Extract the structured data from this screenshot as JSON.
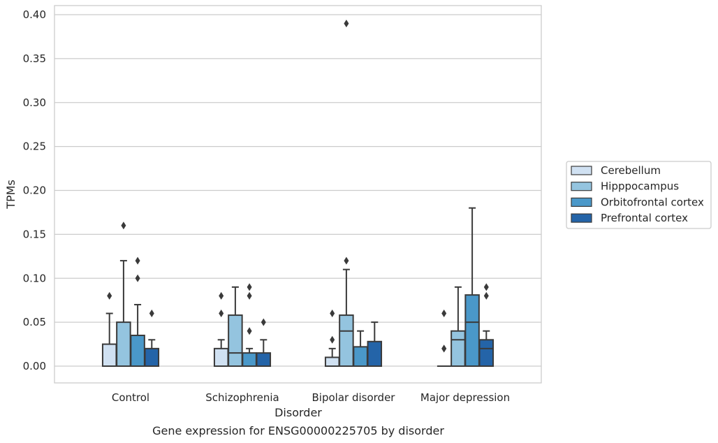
{
  "chart_data": {
    "type": "box",
    "title": "",
    "caption": "Gene expression for ENSG00000225705 by disorder",
    "xlabel": "Disorder",
    "ylabel": "TPMs",
    "ylim": [
      -0.018,
      0.41
    ],
    "yticks": [
      "0.00",
      "0.05",
      "0.10",
      "0.15",
      "0.20",
      "0.25",
      "0.30",
      "0.35",
      "0.40"
    ],
    "ytick_values": [
      0,
      0.05,
      0.1,
      0.15,
      0.2,
      0.25,
      0.3,
      0.35,
      0.4
    ],
    "grid": true,
    "legend_position": "right",
    "categories": [
      "Control",
      "Schizophrenia",
      "Bipolar disorder",
      "Major depression"
    ],
    "series": [
      {
        "name": "Cerebellum",
        "color": "#d0e1f2",
        "boxes": [
          {
            "q1": 0,
            "median": 0,
            "q3": 0.025,
            "whislo": 0,
            "whishi": 0.06,
            "fliers": [
              0.08
            ]
          },
          {
            "q1": 0,
            "median": 0,
            "q3": 0.02,
            "whislo": 0,
            "whishi": 0.03,
            "fliers": [
              0.06,
              0.08
            ]
          },
          {
            "q1": 0,
            "median": 0,
            "q3": 0.01,
            "whislo": 0,
            "whishi": 0.02,
            "fliers": [
              0.03,
              0.06
            ]
          },
          {
            "q1": 0,
            "median": 0,
            "q3": 0,
            "whislo": 0,
            "whishi": 0,
            "fliers": [
              0.02,
              0.02,
              0.06
            ]
          }
        ]
      },
      {
        "name": "Hipppocampus",
        "color": "#94c4df",
        "boxes": [
          {
            "q1": 0,
            "median": 0,
            "q3": 0.05,
            "whislo": 0,
            "whishi": 0.12,
            "fliers": [
              0.16
            ]
          },
          {
            "q1": 0,
            "median": 0.015,
            "q3": 0.058,
            "whislo": 0,
            "whishi": 0.09,
            "fliers": []
          },
          {
            "q1": 0,
            "median": 0.04,
            "q3": 0.058,
            "whislo": 0,
            "whishi": 0.11,
            "fliers": [
              0.12,
              0.39
            ]
          },
          {
            "q1": 0,
            "median": 0.03,
            "q3": 0.04,
            "whislo": 0,
            "whishi": 0.09,
            "fliers": []
          }
        ]
      },
      {
        "name": "Orbitofrontal cortex",
        "color": "#4a98c9",
        "boxes": [
          {
            "q1": 0,
            "median": 0,
            "q3": 0.035,
            "whislo": 0,
            "whishi": 0.07,
            "fliers": [
              0.1,
              0.12
            ]
          },
          {
            "q1": 0,
            "median": 0,
            "q3": 0.015,
            "whislo": 0,
            "whishi": 0.02,
            "fliers": [
              0.04,
              0.08,
              0.09
            ]
          },
          {
            "q1": 0,
            "median": 0,
            "q3": 0.022,
            "whislo": 0,
            "whishi": 0.04,
            "fliers": []
          },
          {
            "q1": 0,
            "median": 0.05,
            "q3": 0.081,
            "whislo": 0,
            "whishi": 0.18,
            "fliers": []
          }
        ]
      },
      {
        "name": "Prefrontal cortex",
        "color": "#2464a8",
        "boxes": [
          {
            "q1": 0,
            "median": 0,
            "q3": 0.02,
            "whislo": 0,
            "whishi": 0.03,
            "fliers": [
              0.06
            ]
          },
          {
            "q1": 0,
            "median": 0,
            "q3": 0.015,
            "whislo": 0,
            "whishi": 0.03,
            "fliers": [
              0.05
            ]
          },
          {
            "q1": 0,
            "median": 0,
            "q3": 0.028,
            "whislo": 0,
            "whishi": 0.05,
            "fliers": []
          },
          {
            "q1": 0,
            "median": 0.02,
            "q3": 0.03,
            "whislo": 0,
            "whishi": 0.04,
            "fliers": [
              0.08,
              0.09
            ]
          }
        ]
      }
    ]
  }
}
